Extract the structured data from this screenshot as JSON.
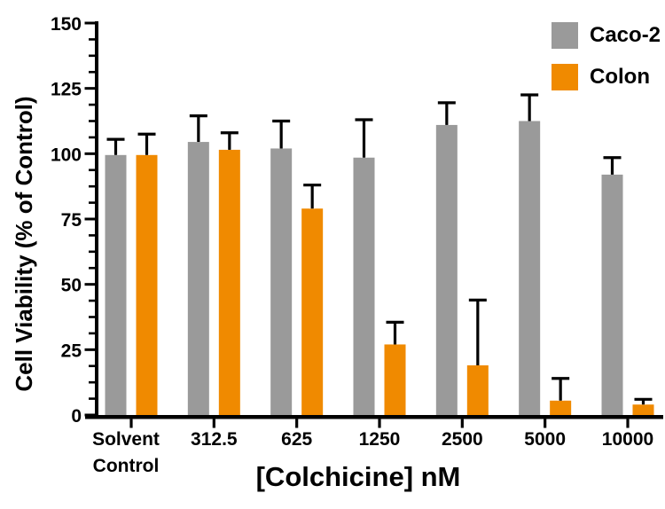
{
  "chart_data": {
    "type": "bar",
    "title": "",
    "xlabel": "[Colchicine] nM",
    "ylabel": "Cell Viability (% of Control)",
    "categories": [
      "Solvent\nControl",
      "312.5",
      "625",
      "1250",
      "2500",
      "5000",
      "10000"
    ],
    "series": [
      {
        "name": "Caco-2",
        "color": "#9A9A9A",
        "values": [
          99.5,
          104.5,
          102,
          98.5,
          111,
          112.5,
          92
        ],
        "errors_plus": [
          6,
          10,
          10.5,
          14.5,
          8.5,
          10,
          6.5
        ]
      },
      {
        "name": "Colon",
        "color": "#F08A00",
        "values": [
          99.5,
          101.5,
          79,
          27,
          19,
          5.5,
          4
        ],
        "errors_plus": [
          8,
          6.5,
          9,
          8.5,
          25,
          8.5,
          2
        ]
      }
    ],
    "ylim": [
      0,
      150
    ],
    "yticks": [
      0,
      25,
      50,
      75,
      100,
      125,
      150
    ],
    "ytick_step": 25,
    "yminor_step": 6.25,
    "error_bars": "upper-only",
    "grid": false,
    "legend_position": "top-right",
    "axis_color": "#000000",
    "background_color": "#FFFFFF"
  }
}
